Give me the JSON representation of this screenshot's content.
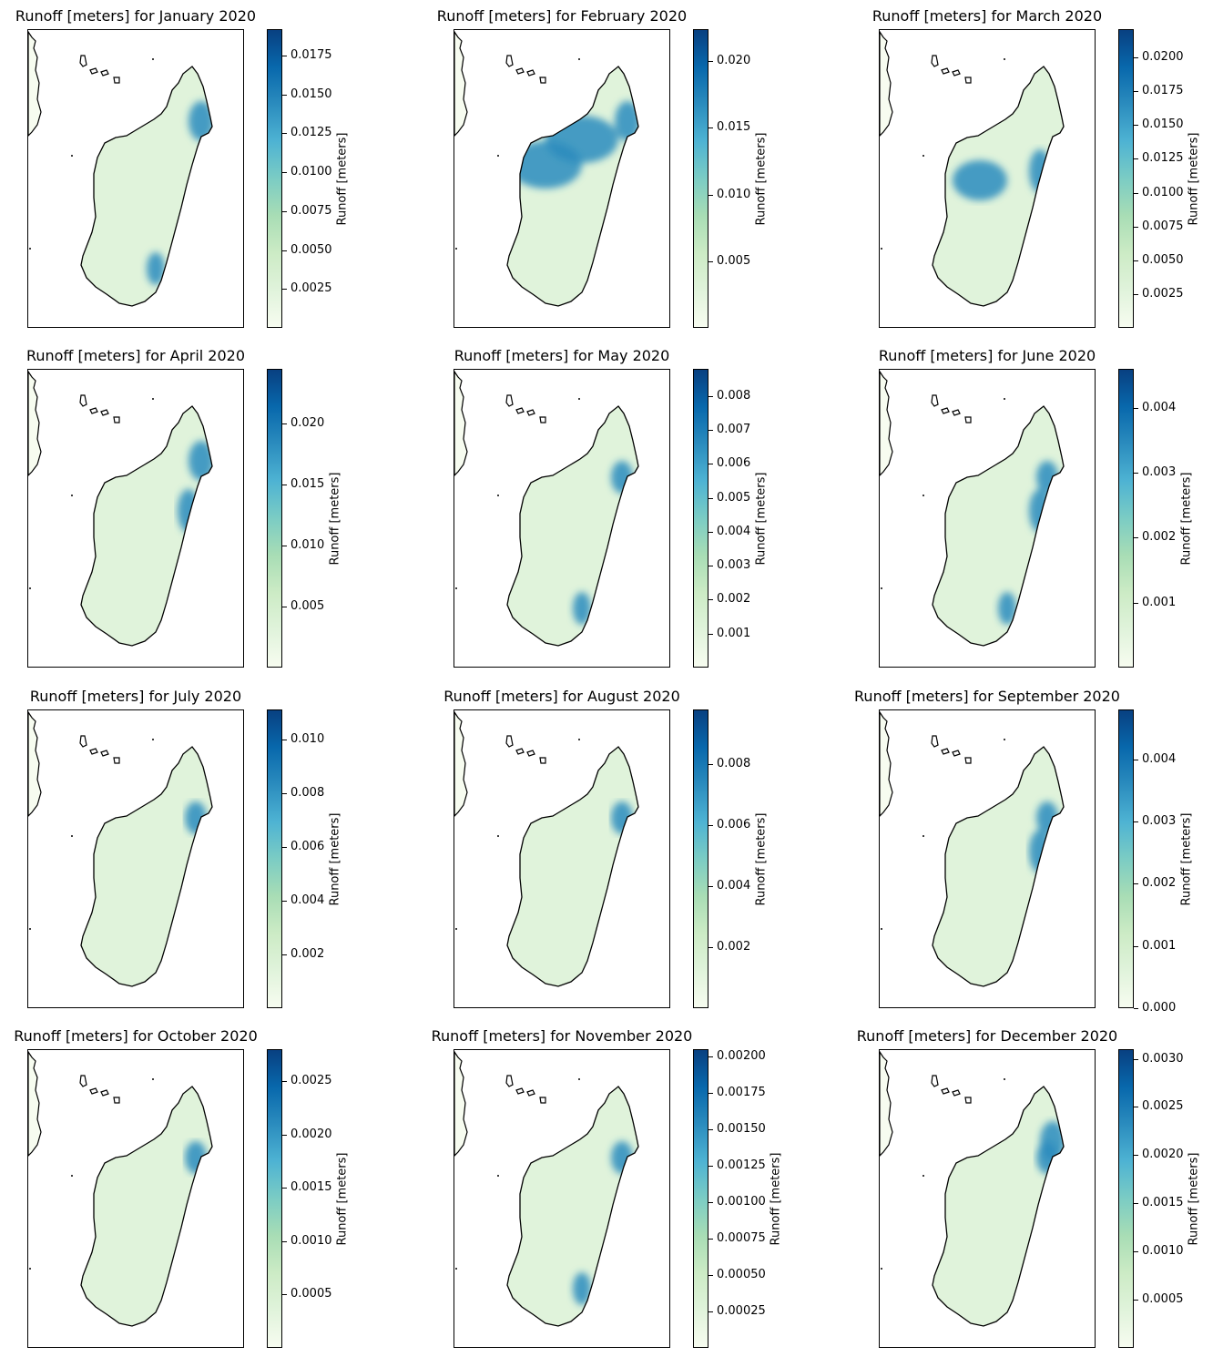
{
  "colormap": {
    "name": "GnBu",
    "stops": [
      "#f7fcf0",
      "#e0f3db",
      "#ccebc5",
      "#a8ddb5",
      "#7bccc4",
      "#4eb3d3",
      "#2b8cbe",
      "#0868ac",
      "#084081"
    ]
  },
  "coastline_color": "#000000",
  "colorbar_label": "Runoff [meters]",
  "panels": [
    {
      "title": "Runoff [meters] for January 2020",
      "vmax": 0.0192,
      "vmin": 0.0,
      "ticks": [
        "0.0025",
        "0.0050",
        "0.0075",
        "0.0100",
        "0.0125",
        "0.0150",
        "0.0175"
      ],
      "hotspots": [
        "north-east-tip",
        "south-east-coast"
      ]
    },
    {
      "title": "Runoff [meters] for February 2020",
      "vmax": 0.0224,
      "vmin": 0.0,
      "ticks": [
        "0.005",
        "0.010",
        "0.015",
        "0.020"
      ],
      "hotspots": [
        "north-east-tip",
        "north-central-highlands",
        "north-west-interior"
      ]
    },
    {
      "title": "Runoff [meters] for March 2020",
      "vmax": 0.0221,
      "vmin": 0.0,
      "ticks": [
        "0.0025",
        "0.0050",
        "0.0075",
        "0.0100",
        "0.0125",
        "0.0150",
        "0.0175",
        "0.0200"
      ],
      "hotspots": [
        "central-east-coast",
        "central-highlands"
      ]
    },
    {
      "title": "Runoff [meters] for April 2020",
      "vmax": 0.0245,
      "vmin": 0.0,
      "ticks": [
        "0.005",
        "0.010",
        "0.015",
        "0.020"
      ],
      "hotspots": [
        "north-east-tip",
        "central-east-coast"
      ]
    },
    {
      "title": "Runoff [meters] for May 2020",
      "vmax": 0.0088,
      "vmin": 0.0,
      "ticks": [
        "0.001",
        "0.002",
        "0.003",
        "0.004",
        "0.005",
        "0.006",
        "0.007",
        "0.008"
      ],
      "hotspots": [
        "north-east-coast",
        "south-east-coast"
      ]
    },
    {
      "title": "Runoff [meters] for June 2020",
      "vmax": 0.0046,
      "vmin": 0.0,
      "ticks": [
        "0.001",
        "0.002",
        "0.003",
        "0.004"
      ],
      "hotspots": [
        "north-east-coast",
        "central-east-coast",
        "south-east-coast"
      ]
    },
    {
      "title": "Runoff [meters] for July 2020",
      "vmax": 0.0111,
      "vmin": 0.0,
      "ticks": [
        "0.002",
        "0.004",
        "0.006",
        "0.008",
        "0.010"
      ],
      "hotspots": [
        "north-east-coast"
      ]
    },
    {
      "title": "Runoff [meters] for August 2020",
      "vmax": 0.0098,
      "vmin": 0.0,
      "ticks": [
        "0.002",
        "0.004",
        "0.006",
        "0.008"
      ],
      "hotspots": [
        "north-east-coast"
      ]
    },
    {
      "title": "Runoff [meters] for September 2020",
      "vmax": 0.0048,
      "vmin": 0.0,
      "ticks": [
        "0.000",
        "0.001",
        "0.002",
        "0.003",
        "0.004"
      ],
      "hotspots": [
        "north-east-coast",
        "central-east-coast"
      ]
    },
    {
      "title": "Runoff [meters] for October 2020",
      "vmax": 0.0028,
      "vmin": 0.0,
      "ticks": [
        "0.0005",
        "0.0010",
        "0.0015",
        "0.0020",
        "0.0025"
      ],
      "hotspots": [
        "north-east-coast"
      ]
    },
    {
      "title": "Runoff [meters] for November 2020",
      "vmax": 0.00205,
      "vmin": 0.0,
      "ticks": [
        "0.00025",
        "0.00050",
        "0.00075",
        "0.00100",
        "0.00125",
        "0.00150",
        "0.00175",
        "0.00200"
      ],
      "hotspots": [
        "north-east-coast",
        "south-east-coast"
      ]
    },
    {
      "title": "Runoff [meters] for December 2020",
      "vmax": 0.0031,
      "vmin": 0.0,
      "ticks": [
        "0.0005",
        "0.0010",
        "0.0015",
        "0.0020",
        "0.0025",
        "0.0030"
      ],
      "hotspots": [
        "north-east-coast",
        "north-east-tip"
      ]
    }
  ]
}
